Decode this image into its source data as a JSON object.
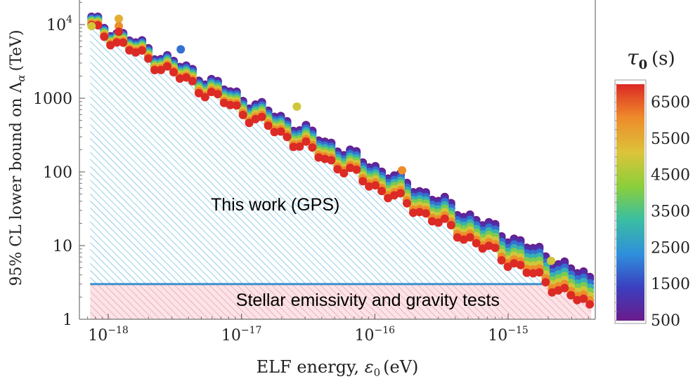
{
  "chart_data": {
    "type": "scatter",
    "x_scale": "log",
    "y_scale": "log",
    "xlabel": "ELF energy, ε₀ (eV)",
    "ylabel": "95% CL lower bound on Λα (TeV)",
    "xlim": [
      6.5e-19,
      4.3e-15
    ],
    "ylim": [
      1,
      20000
    ],
    "x_ticks": [
      {
        "value": 1e-18,
        "base": "10",
        "exp": "−18"
      },
      {
        "value": 1e-17,
        "base": "10",
        "exp": "−17"
      },
      {
        "value": 1e-16,
        "base": "10",
        "exp": "−16"
      },
      {
        "value": 1e-15,
        "base": "10",
        "exp": "−15"
      }
    ],
    "y_ticks": [
      {
        "value": 10000,
        "label": "10",
        "exp": "4"
      },
      {
        "value": 1000,
        "label": "1000",
        "exp": ""
      },
      {
        "value": 100,
        "label": "100",
        "exp": ""
      },
      {
        "value": 10,
        "label": "10",
        "exp": ""
      },
      {
        "value": 1,
        "label": "1",
        "exp": ""
      }
    ],
    "regions": [
      {
        "name": "This work (GPS)",
        "type": "hatched-excluded",
        "color": "#5ab4dc",
        "label_at": [
          1e-17,
          30
        ]
      },
      {
        "name": "Stellar emissivity and gravity tests",
        "type": "hatched-band",
        "color": "#e8909a",
        "fill": "#fbe3e7",
        "ymax": 3.0,
        "label_at": [
          1e-16,
          1.85
        ]
      }
    ],
    "stellar_line": {
      "y": 3.0,
      "color": "#3a8fcd"
    },
    "colorbar": {
      "title": "τ₀",
      "unit": "(s)",
      "range": [
        500,
        7000
      ],
      "ticks": [
        "500",
        "1500",
        "2500",
        "3500",
        "4500",
        "5500",
        "6500"
      ],
      "tick_values": [
        500,
        1500,
        2500,
        3500,
        4500,
        5500,
        6500
      ],
      "gradient": [
        "#6a1b8a",
        "#3b3fbf",
        "#2f8fdc",
        "#3bbfa0",
        "#8ccf3a",
        "#dcc43a",
        "#ee8a2a",
        "#dc2a25"
      ]
    },
    "series": [
      {
        "name": "tau0 = 7000 s",
        "tau": 7000,
        "upper_x": 4.1e-15,
        "upper_y": 1.5,
        "outliers": []
      },
      {
        "name": "tau0 = 6000 s",
        "tau": 6000,
        "upper_x": 4.1e-15,
        "upper_y": 1.7,
        "outliers": [
          [
            1.6e-16,
            105
          ]
        ]
      },
      {
        "name": "tau0 = 5000 s",
        "tau": 5000,
        "upper_x": 4.1e-15,
        "upper_y": 2.0,
        "outliers": [
          [
            2.6e-17,
            770
          ],
          [
            2.1e-15,
            6.2
          ]
        ]
      },
      {
        "name": "tau0 = 4000 s",
        "tau": 4000,
        "upper_x": 4.1e-15,
        "upper_y": 2.3,
        "outliers": []
      },
      {
        "name": "tau0 = 3000 s",
        "tau": 3000,
        "upper_x": 4.1e-15,
        "upper_y": 2.7,
        "outliers": []
      },
      {
        "name": "tau0 = 2000 s",
        "tau": 2000,
        "upper_x": 4.1e-15,
        "upper_y": 3.1,
        "outliers": [
          [
            3.5e-18,
            4600
          ]
        ]
      },
      {
        "name": "tau0 = 1000 s",
        "tau": 1000,
        "upper_x": 4.1e-15,
        "upper_y": 3.5,
        "outliers": []
      },
      {
        "name": "tau0 = 500 s",
        "tau": 500,
        "upper_x": 4.1e-15,
        "upper_y": 3.8,
        "outliers": []
      }
    ],
    "base_curve": {
      "description": "red (tau0=7000) lower-bound points along a log-linear trend",
      "start": [
        7.5e-19,
        9000
      ],
      "end": [
        4.1e-15,
        1.5
      ],
      "n_points": 80
    }
  },
  "labels": {
    "region_gps": "This work (GPS)",
    "region_stellar": "Stellar emissivity and gravity tests",
    "xlabel_text": "ELF energy, ",
    "xlabel_sym": "ε",
    "xlabel_sub": "0",
    "xlabel_unit": "(eV)",
    "ylabel_text": "95% CL lower bound on Λ",
    "ylabel_sub": "α",
    "ylabel_unit": "(TeV)",
    "cb_title": "τ",
    "cb_title_sub": "0",
    "cb_unit": "(s)"
  }
}
